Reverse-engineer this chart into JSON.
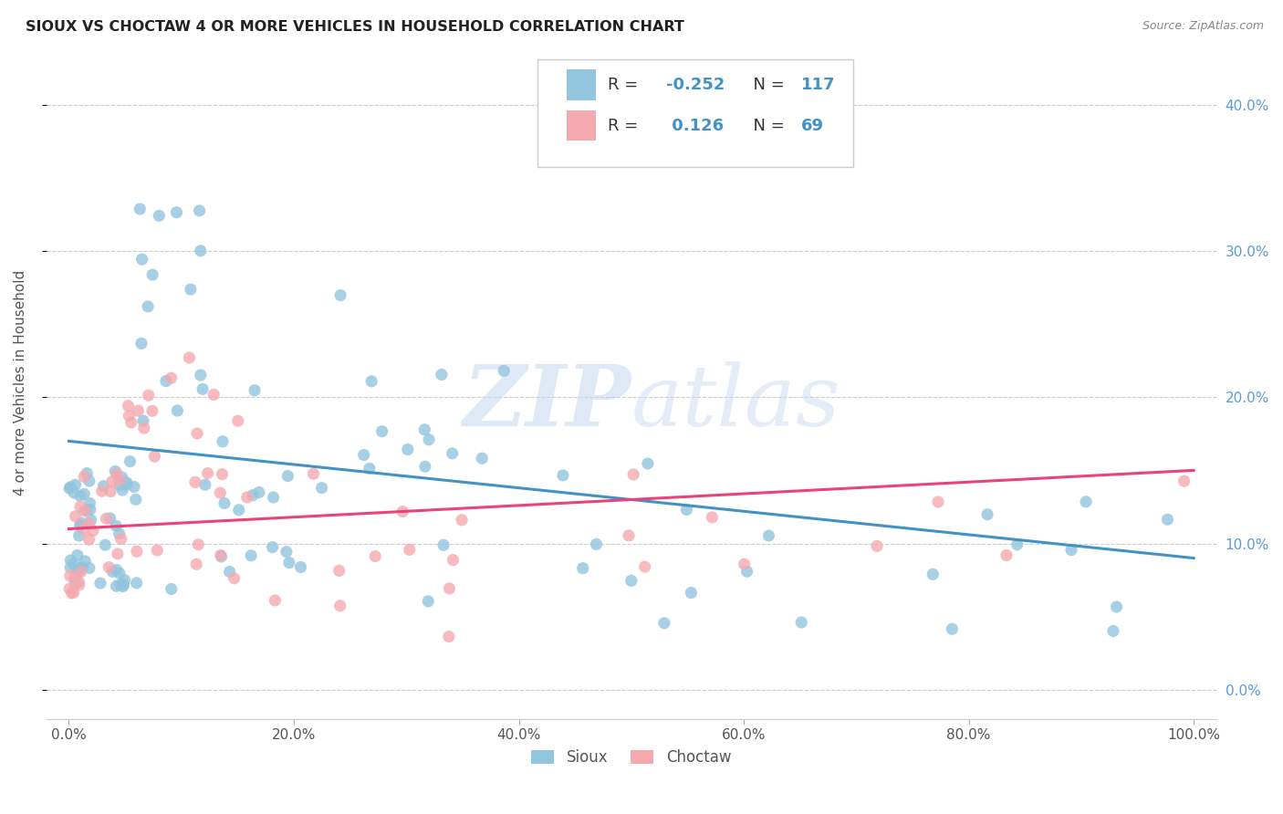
{
  "title": "SIOUX VS CHOCTAW 4 OR MORE VEHICLES IN HOUSEHOLD CORRELATION CHART",
  "source": "Source: ZipAtlas.com",
  "ylabel_label": "4 or more Vehicles in Household",
  "xlim": [
    -0.02,
    1.02
  ],
  "ylim": [
    -0.02,
    0.44
  ],
  "sioux_color": "#92c5de",
  "choctaw_color": "#f4a9b0",
  "sioux_line_color": "#4292c6",
  "choctaw_line_color": "#e8437a",
  "sioux_R": -0.252,
  "sioux_N": 117,
  "choctaw_R": 0.126,
  "choctaw_N": 69,
  "watermark_zip": "ZIP",
  "watermark_atlas": "atlas",
  "background_color": "#ffffff",
  "grid_color": "#cccccc",
  "ytick_color": "#5b9bd5",
  "xtick_color": "#555555"
}
